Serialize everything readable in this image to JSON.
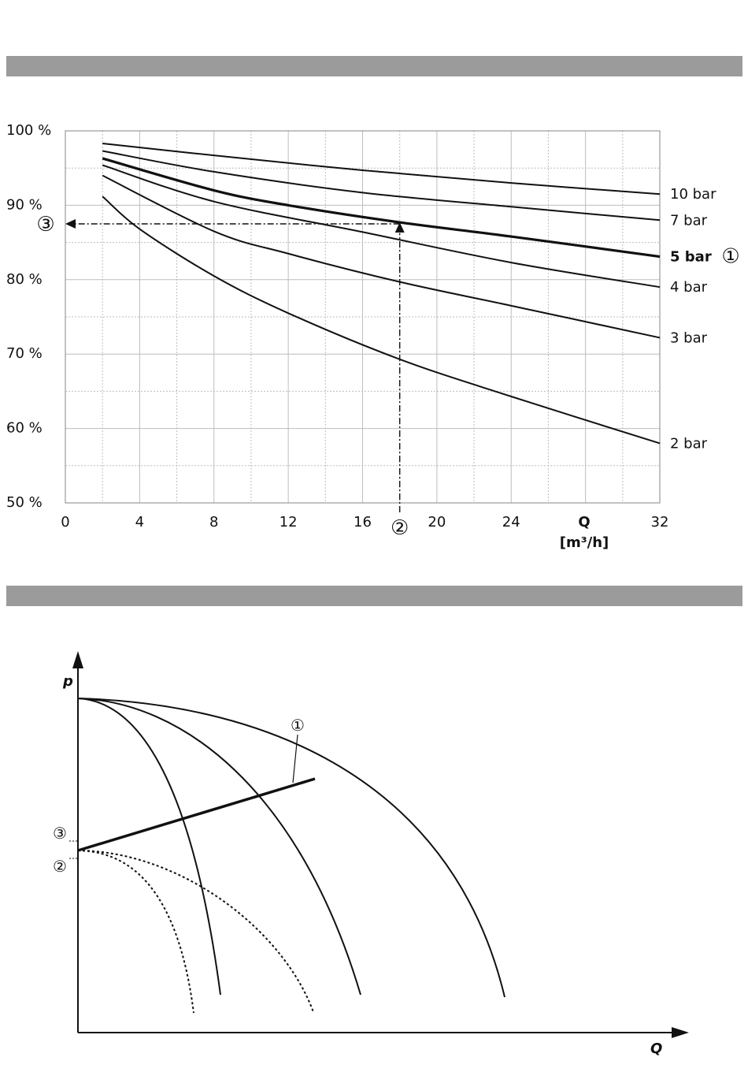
{
  "chart_data": [
    {
      "type": "line",
      "title": "",
      "xlabel": "Q",
      "xunit": "[m³/h]",
      "ylabel": "",
      "xlim": [
        0,
        32
      ],
      "ylim": [
        50,
        100
      ],
      "x_ticks": [
        "0",
        "4",
        "8",
        "12",
        "16",
        "20",
        "24",
        "32"
      ],
      "x_axis_q_label": "Q",
      "y_ticks": [
        "50 %",
        "60 %",
        "70 %",
        "80 %",
        "90 %",
        "100 %"
      ],
      "grid": true,
      "series": [
        {
          "name": "10 bar",
          "label": "10 bar",
          "bold": false,
          "x": [
            2,
            8,
            16,
            24,
            32
          ],
          "y": [
            98.3,
            96.7,
            94.7,
            93.0,
            91.5
          ]
        },
        {
          "name": "7 bar",
          "label": "7 bar",
          "bold": false,
          "x": [
            2,
            8,
            16,
            24,
            32
          ],
          "y": [
            97.3,
            94.5,
            91.7,
            89.8,
            88.0
          ]
        },
        {
          "name": "5 bar",
          "label": "5 bar",
          "bold": true,
          "marker": "①",
          "x": [
            2,
            8,
            12,
            18,
            24,
            32
          ],
          "y": [
            96.3,
            92.0,
            90.0,
            87.7,
            85.8,
            83.1
          ]
        },
        {
          "name": "4 bar",
          "label": "4 bar",
          "bold": false,
          "x": [
            2,
            8,
            16,
            24,
            32
          ],
          "y": [
            95.4,
            90.5,
            86.4,
            82.3,
            79.0
          ]
        },
        {
          "name": "3 bar",
          "label": "3 bar",
          "bold": false,
          "x": [
            2,
            8,
            12,
            18,
            24,
            32
          ],
          "y": [
            94.0,
            86.5,
            83.5,
            79.7,
            76.5,
            72.2
          ]
        },
        {
          "name": "2 bar",
          "label": "2 bar",
          "bold": false,
          "x": [
            2,
            4,
            8,
            12,
            18,
            24,
            32
          ],
          "y": [
            91.2,
            86.8,
            80.5,
            75.5,
            69.3,
            64.3,
            58.0
          ]
        }
      ],
      "annotations": [
        {
          "id": "marker-2",
          "text": "②",
          "x": 18
        },
        {
          "id": "marker-3",
          "text": "③",
          "y": 87.5
        }
      ]
    },
    {
      "type": "line",
      "title": "",
      "xlabel": "Q",
      "ylabel": "p",
      "markers": [
        "①",
        "②",
        "③"
      ],
      "description_free": true
    }
  ]
}
